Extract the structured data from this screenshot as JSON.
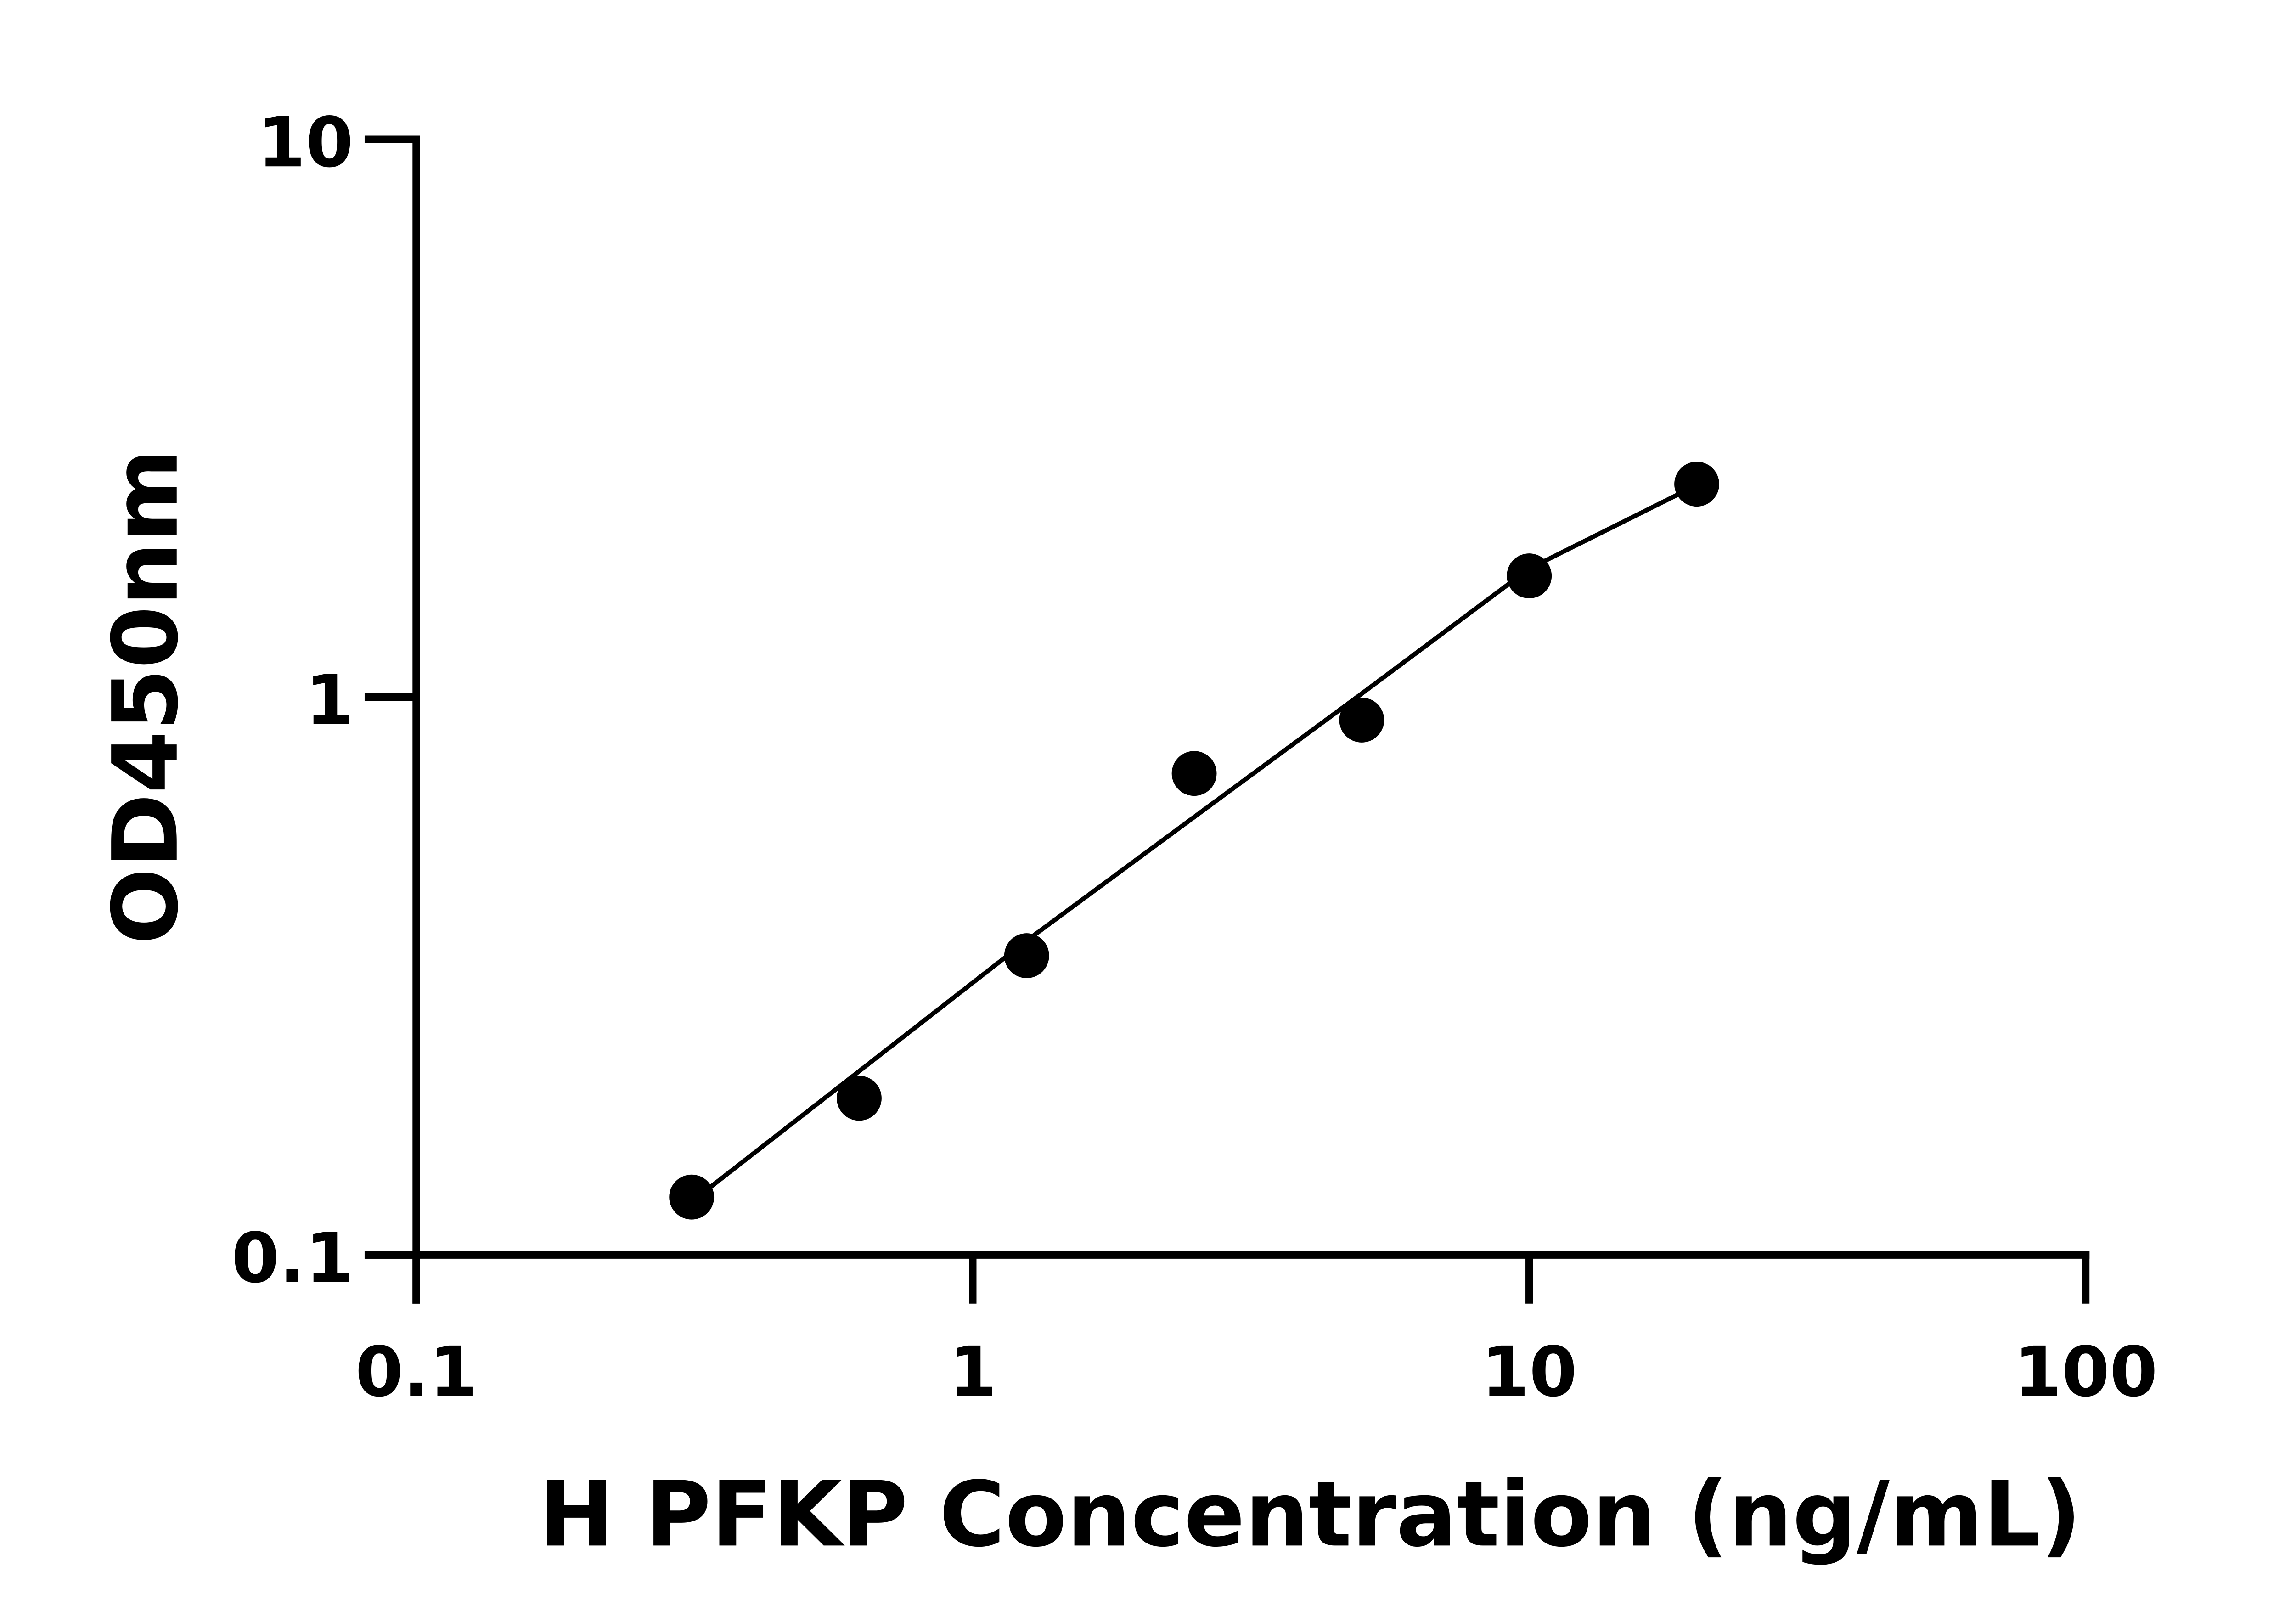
{
  "chart_data": {
    "type": "scatter",
    "title": "",
    "xlabel": "H PFKP Concentration (ng/mL)",
    "ylabel": "OD450nm",
    "x_scale": "log",
    "y_scale": "log",
    "xlim": [
      0.1,
      100
    ],
    "ylim": [
      0.1,
      10
    ],
    "x_ticks": [
      "0.1",
      "1",
      "10",
      "100"
    ],
    "y_ticks": [
      "0.1",
      "1",
      "10"
    ],
    "x_tick_values": [
      0.1,
      1,
      10,
      100
    ],
    "y_tick_values": [
      0.1,
      1,
      10
    ],
    "grid": false,
    "point_color": "#000000",
    "line_color": "#000000",
    "points": [
      {
        "x": 0.3125,
        "y": 0.127
      },
      {
        "x": 0.625,
        "y": 0.191
      },
      {
        "x": 1.25,
        "y": 0.344
      },
      {
        "x": 2.5,
        "y": 0.73
      },
      {
        "x": 5,
        "y": 0.91
      },
      {
        "x": 10,
        "y": 1.65
      },
      {
        "x": 20,
        "y": 2.41
      }
    ],
    "fit_curve": [
      {
        "x": 0.33,
        "y": 0.13
      },
      {
        "x": 1.25,
        "y": 0.366
      },
      {
        "x": 2.5,
        "y": 0.61
      },
      {
        "x": 5,
        "y": 1.015
      },
      {
        "x": 10,
        "y": 1.7
      },
      {
        "x": 19,
        "y": 2.34
      }
    ]
  }
}
